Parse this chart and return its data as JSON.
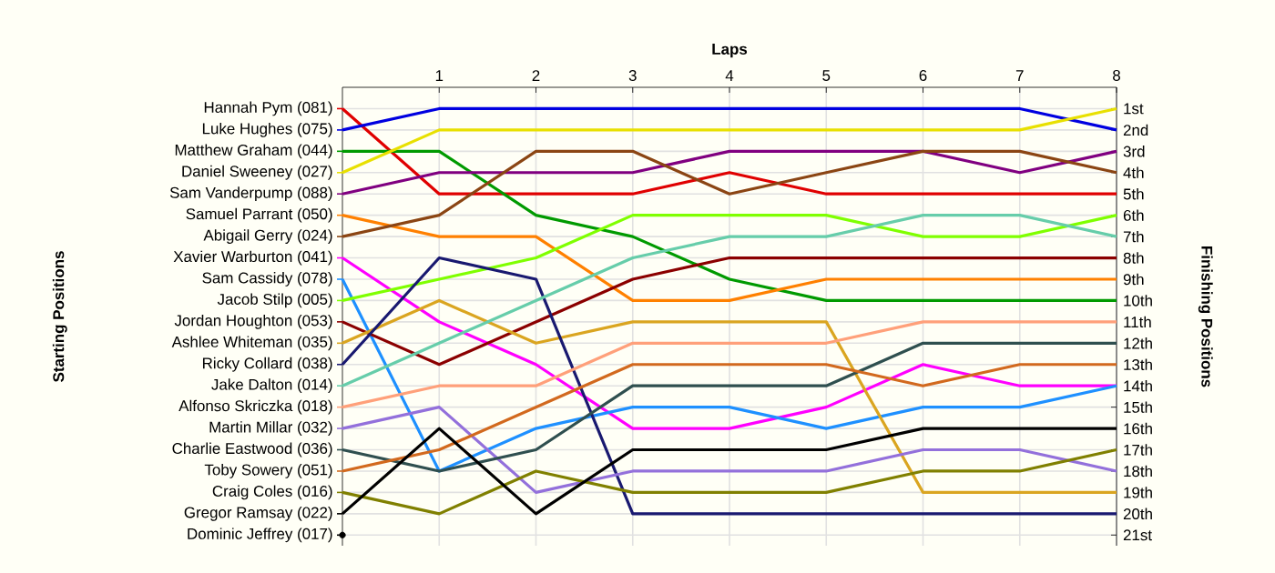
{
  "chart_data": {
    "type": "line",
    "xlabel": "Laps",
    "legend_title": "Starting Positions",
    "y2label": "Finishing Positions",
    "x": [
      0,
      1,
      2,
      3,
      4,
      5,
      6,
      7,
      8
    ],
    "xlim": [
      0,
      8
    ],
    "xticks": [
      1,
      2,
      3,
      4,
      5,
      6,
      7,
      8
    ],
    "ylim": [
      21.5,
      0
    ],
    "yticks": [
      {
        "value": 1,
        "label": "1st"
      },
      {
        "value": 2,
        "label": "2nd"
      },
      {
        "value": 3,
        "label": "3rd"
      },
      {
        "value": 4,
        "label": "4th"
      },
      {
        "value": 5,
        "label": "5th"
      },
      {
        "value": 6,
        "label": "6th"
      },
      {
        "value": 7,
        "label": "7th"
      },
      {
        "value": 8,
        "label": "8th"
      },
      {
        "value": 9,
        "label": "9th"
      },
      {
        "value": 10,
        "label": "10th"
      },
      {
        "value": 11,
        "label": "11th"
      },
      {
        "value": 12,
        "label": "12th"
      },
      {
        "value": 13,
        "label": "13th"
      },
      {
        "value": 14,
        "label": "14th"
      },
      {
        "value": 15,
        "label": "15th"
      },
      {
        "value": 16,
        "label": "16th"
      },
      {
        "value": 17,
        "label": "17th"
      },
      {
        "value": 18,
        "label": "18th"
      },
      {
        "value": 19,
        "label": "19th"
      },
      {
        "value": 20,
        "label": "20th"
      },
      {
        "value": 21,
        "label": "21st"
      }
    ],
    "grid": true,
    "legend": "left",
    "series": [
      {
        "name": "Hannah Pym (081)",
        "color": "#e00000",
        "values": [
          1,
          5,
          5,
          5,
          4,
          5,
          5,
          5,
          5
        ]
      },
      {
        "name": "Luke Hughes (075)",
        "color": "#0000e0",
        "values": [
          2,
          1,
          1,
          1,
          1,
          1,
          1,
          1,
          2
        ]
      },
      {
        "name": "Matthew Graham (044)",
        "color": "#009a00",
        "values": [
          3,
          3,
          6,
          7,
          9,
          10,
          10,
          10,
          10
        ]
      },
      {
        "name": "Daniel Sweeney (027)",
        "color": "#e8e000",
        "values": [
          4,
          2,
          2,
          2,
          2,
          2,
          2,
          2,
          1
        ]
      },
      {
        "name": "Sam Vanderpump (088)",
        "color": "#800080",
        "values": [
          5,
          4,
          4,
          4,
          3,
          3,
          3,
          4,
          3
        ]
      },
      {
        "name": "Samuel Parrant (050)",
        "color": "#ff8000",
        "values": [
          6,
          7,
          7,
          10,
          10,
          9,
          9,
          9,
          9
        ]
      },
      {
        "name": "Abigail Gerry (024)",
        "color": "#8b4513",
        "values": [
          7,
          6,
          3,
          3,
          5,
          4,
          3,
          3,
          4
        ]
      },
      {
        "name": "Xavier Warburton (041)",
        "color": "#ff00ff",
        "values": [
          8,
          11,
          13,
          16,
          16,
          15,
          13,
          14,
          14
        ]
      },
      {
        "name": "Sam Cassidy (078)",
        "color": "#1e90ff",
        "values": [
          9,
          18,
          16,
          15,
          15,
          16,
          15,
          15,
          14
        ]
      },
      {
        "name": "Jacob Stilp (005)",
        "color": "#7fff00",
        "values": [
          10,
          9,
          8,
          6,
          6,
          6,
          7,
          7,
          6
        ]
      },
      {
        "name": "Jordan Houghton (053)",
        "color": "#8b0000",
        "values": [
          11,
          13,
          11,
          9,
          8,
          8,
          8,
          8,
          8
        ]
      },
      {
        "name": "Ashlee Whiteman (035)",
        "color": "#daa520",
        "values": [
          12,
          10,
          12,
          11,
          11,
          11,
          19,
          19,
          19
        ]
      },
      {
        "name": "Ricky Collard (038)",
        "color": "#191970",
        "values": [
          13,
          8,
          9,
          20,
          20,
          20,
          20,
          20,
          20
        ]
      },
      {
        "name": "Jake Dalton (014)",
        "color": "#66cdaa",
        "values": [
          14,
          12,
          10,
          8,
          7,
          7,
          6,
          6,
          7
        ]
      },
      {
        "name": "Alfonso Skriczka (018)",
        "color": "#ffa07a",
        "values": [
          15,
          14,
          14,
          12,
          12,
          12,
          11,
          11,
          11
        ]
      },
      {
        "name": "Martin Millar (032)",
        "color": "#9370db",
        "values": [
          16,
          15,
          19,
          18,
          18,
          18,
          17,
          17,
          18
        ]
      },
      {
        "name": "Charlie Eastwood (036)",
        "color": "#2f4f4f",
        "values": [
          17,
          18,
          17,
          14,
          14,
          14,
          12,
          12,
          12
        ]
      },
      {
        "name": "Toby Sowery (051)",
        "color": "#d2691e",
        "values": [
          18,
          17,
          15,
          13,
          13,
          13,
          14,
          13,
          13
        ]
      },
      {
        "name": "Craig Coles (016)",
        "color": "#808000",
        "values": [
          19,
          20,
          18,
          19,
          19,
          19,
          18,
          18,
          17
        ]
      },
      {
        "name": "Gregor Ramsay (022)",
        "color": "#000000",
        "values": [
          20,
          16,
          20,
          17,
          17,
          17,
          16,
          16,
          16
        ]
      },
      {
        "name": "Dominic Jeffrey (017)",
        "color": "#000000",
        "marker": "circle",
        "values": [
          21,
          null,
          null,
          null,
          null,
          null,
          null,
          null,
          null
        ]
      }
    ]
  }
}
